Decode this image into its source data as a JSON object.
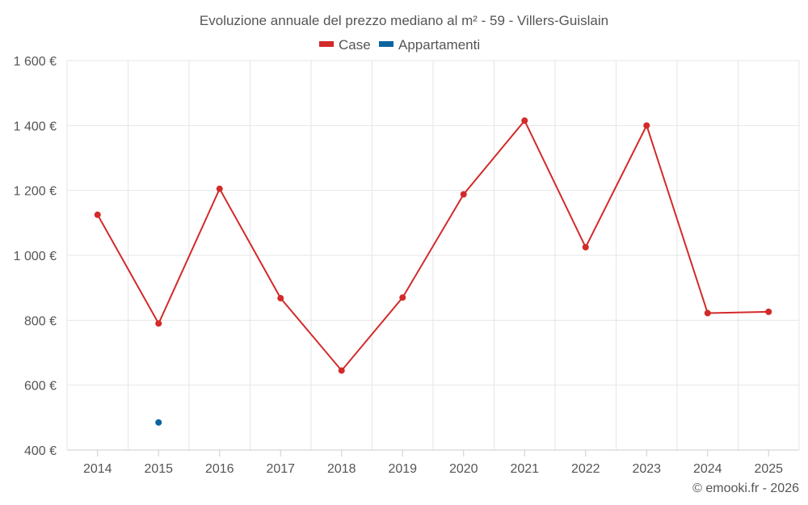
{
  "chart_data": {
    "type": "line",
    "title": "Evoluzione annuale del prezzo mediano al m² - 59 - Villers-Guislain",
    "categories": [
      "2014",
      "2015",
      "2016",
      "2017",
      "2018",
      "2019",
      "2020",
      "2021",
      "2022",
      "2023",
      "2024",
      "2025"
    ],
    "series": [
      {
        "name": "Case",
        "color": "#d32a2a",
        "values": [
          1125,
          790,
          1205,
          868,
          645,
          870,
          1188,
          1415,
          1025,
          1400,
          822,
          826
        ]
      },
      {
        "name": "Appartamenti",
        "color": "#0b64a0",
        "values": [
          null,
          485,
          null,
          null,
          null,
          null,
          null,
          null,
          null,
          null,
          null,
          null
        ]
      }
    ],
    "yticks": [
      400,
      600,
      800,
      1000,
      1200,
      1400,
      1600
    ],
    "ytick_labels": [
      "400 €",
      "600 €",
      "800 €",
      "1 000 €",
      "1 200 €",
      "1 400 €",
      "1 600 €"
    ],
    "ylim": [
      400,
      1600
    ],
    "grid": true,
    "legend_position": "top-center"
  },
  "credit": "© emooki.fr - 2026"
}
